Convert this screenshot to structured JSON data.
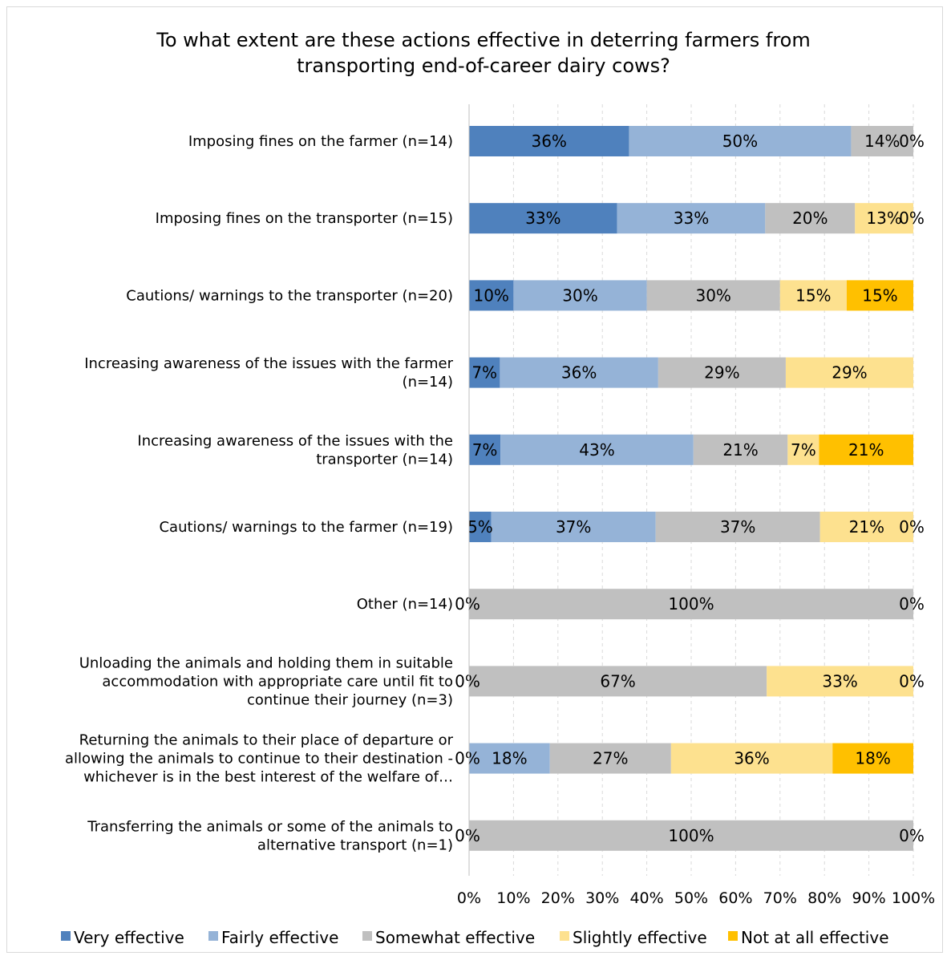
{
  "chart_data": {
    "type": "bar",
    "orientation": "horizontal",
    "stacked": true,
    "title": "To what extent are these actions effective in deterring farmers from transporting end-of-career dairy cows?",
    "xlim": [
      0,
      100
    ],
    "x_ticks": [
      "0%",
      "10%",
      "20%",
      "30%",
      "40%",
      "50%",
      "60%",
      "70%",
      "80%",
      "90%",
      "100%"
    ],
    "grid": "vertical dashed",
    "legend_position": "bottom",
    "categories": [
      "Imposing fines on the farmer  (n=14)",
      "Imposing fines on the transporter  (n=15)",
      "Cautions/ warnings to the transporter  (n=20)",
      "Increasing awareness of the issues with the farmer  (n=14)",
      "Increasing awareness of the issues with the transporter  (n=14)",
      "Cautions/ warnings to the farmer  (n=19)",
      "Other  (n=14)",
      "Unloading the animals and holding them in suitable accommodation with appropriate care until fit to continue their journey  (n=3)",
      "Returning the animals to their place of departure or allowing the animals to continue to their destination - whichever is in the best interest of the welfare of…",
      "Transferring the animals or some of the animals to alternative transport (n=1)"
    ],
    "category_lines": [
      [
        "Imposing fines on the farmer  (n=14)"
      ],
      [
        "Imposing fines on the transporter  (n=15)"
      ],
      [
        "Cautions/ warnings to the transporter  (n=20)"
      ],
      [
        "Increasing awareness of the issues with the farmer",
        "(n=14)"
      ],
      [
        "Increasing awareness of the issues with the",
        "transporter  (n=14)"
      ],
      [
        "Cautions/ warnings to the farmer  (n=19)"
      ],
      [
        "Other  (n=14)"
      ],
      [
        "Unloading the animals and holding them in suitable",
        "accommodation with appropriate care until fit to",
        "continue their journey  (n=3)"
      ],
      [
        "Returning the animals to their place of departure or",
        "allowing the animals to continue to their destination -",
        "whichever is in the best interest of the welfare of…"
      ],
      [
        "Transferring the animals or some of the animals to",
        "alternative transport (n=1)"
      ]
    ],
    "series": [
      {
        "name": "Very effective",
        "color": "#4f81bd",
        "values": [
          36,
          33,
          10,
          7,
          7,
          5,
          0,
          0,
          0,
          0
        ],
        "labels": [
          "36%",
          "33%",
          "10%",
          "7%",
          "7%",
          "5%",
          "0%",
          "0%",
          "0%",
          "0%"
        ]
      },
      {
        "name": "Fairly effective",
        "color": "#95b3d7",
        "values": [
          50,
          33,
          30,
          36,
          43,
          37,
          0,
          0,
          18,
          0
        ],
        "labels": [
          "50%",
          "33%",
          "30%",
          "36%",
          "43%",
          "37%",
          "",
          "",
          "18%",
          ""
        ]
      },
      {
        "name": "Somewhat effective",
        "color": "#c0c0c0",
        "values": [
          14,
          20,
          30,
          29,
          21,
          37,
          100,
          67,
          27,
          100
        ],
        "labels": [
          "14%",
          "20%",
          "30%",
          "29%",
          "21%",
          "37%",
          "100%",
          "67%",
          "27%",
          "100%"
        ]
      },
      {
        "name": "Slightly effective",
        "color": "#fde18f",
        "values": [
          0,
          13,
          15,
          29,
          7,
          21,
          0,
          33,
          36,
          0
        ],
        "labels": [
          "",
          "13%",
          "15%",
          "29%",
          "7%",
          "21%",
          "",
          "33%",
          "36%",
          ""
        ]
      },
      {
        "name": "Not at all effective",
        "color": "#ffc000",
        "values": [
          0,
          0,
          15,
          0,
          21,
          0,
          0,
          0,
          18,
          0
        ],
        "labels": [
          "0%",
          "0%",
          "15%",
          "",
          "21%",
          "0%",
          "0%",
          "0%",
          "18%",
          "0%"
        ]
      }
    ]
  }
}
